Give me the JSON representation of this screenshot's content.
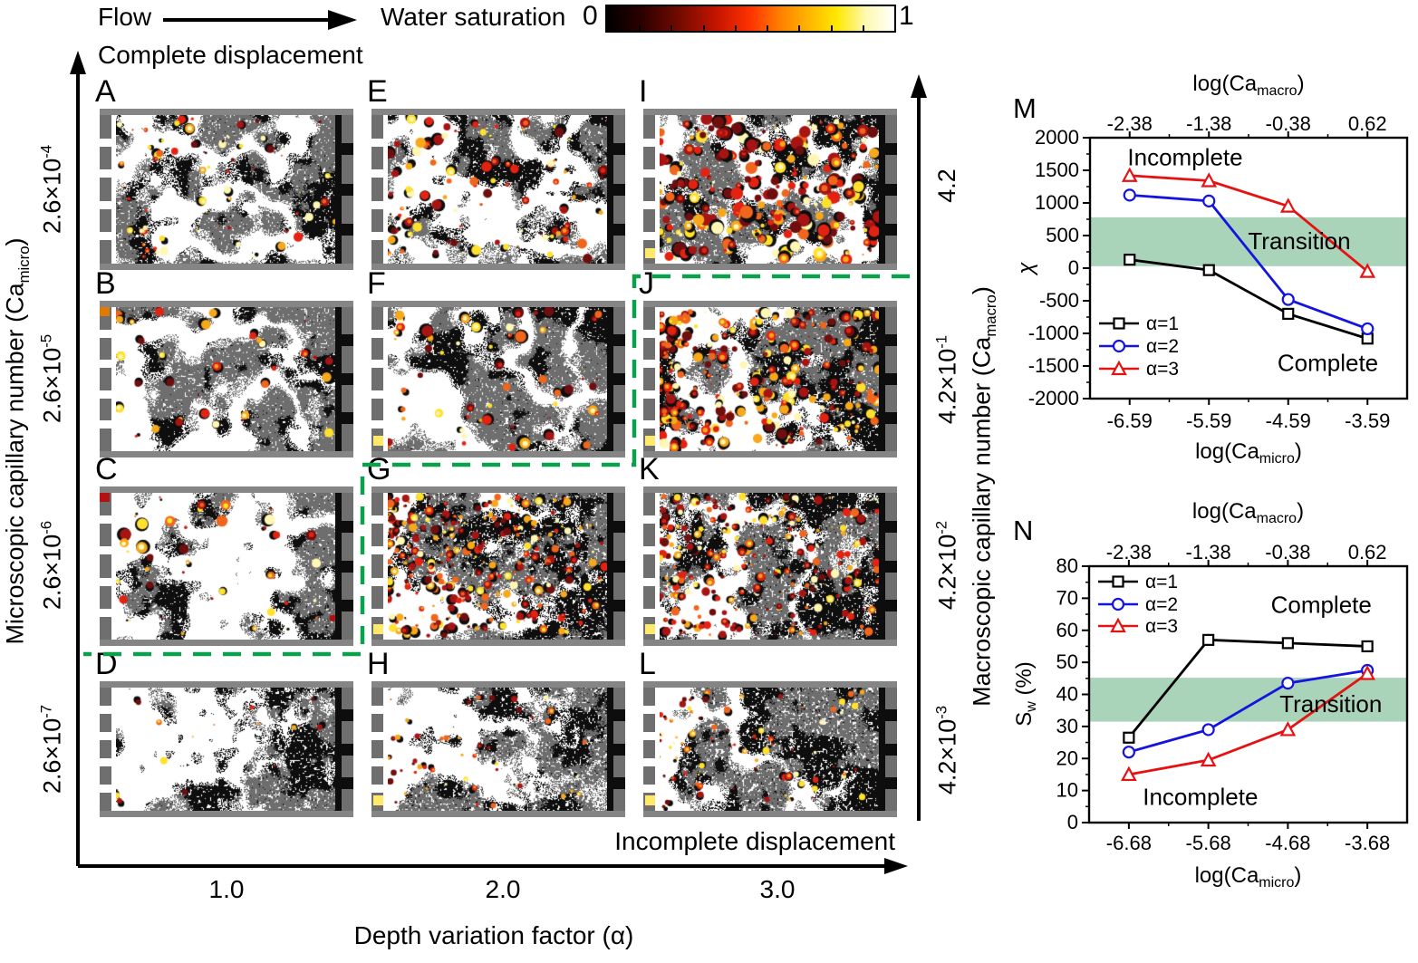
{
  "figure": {
    "flow_label": "Flow",
    "colorbar": {
      "label": "Water saturation",
      "min": "0",
      "max": "1"
    },
    "complete_label": "Complete displacement",
    "incomplete_label": "Incomplete displacement",
    "colors": {
      "dash_green": "#0aa14d",
      "band_green": "#a9d4ba",
      "matrix_gray": "#6e6e6e",
      "pore_black": "#0d0d0d",
      "water_white": "#ffffff"
    },
    "axes": {
      "left": {
        "title_pre": "Microscopic capillary number (Ca",
        "title_sub": "micro",
        "title_post": ")",
        "ticks": [
          {
            "base": "2.6×10",
            "exp": "-4"
          },
          {
            "base": "2.6×10",
            "exp": "-5"
          },
          {
            "base": "2.6×10",
            "exp": "-6"
          },
          {
            "base": "2.6×10",
            "exp": "-7"
          }
        ]
      },
      "right": {
        "title_pre": "Macroscopic capillary number (Ca",
        "title_sub": "macro",
        "title_post": ")",
        "ticks": [
          {
            "base": "4.2",
            "exp": ""
          },
          {
            "base": "4.2×10",
            "exp": "-1"
          },
          {
            "base": "4.2×10",
            "exp": "-2"
          },
          {
            "base": "4.2×10",
            "exp": "-3"
          }
        ]
      },
      "bottom": {
        "title": "Depth variation factor (α)",
        "ticks": [
          "1.0",
          "2.0",
          "3.0"
        ]
      }
    },
    "panels": [
      {
        "letter": "A",
        "col": 0,
        "row": 0,
        "tex": {
          "cw": 0.16,
          "tb": 0.565,
          "bias": 0.15,
          "sp": 0.22,
          "cc": 70,
          "blob": 4.5,
          "red": 0.35,
          "seed": 11,
          "inletYellow": false,
          "corner": ""
        }
      },
      {
        "letter": "B",
        "col": 0,
        "row": 1,
        "tex": {
          "cw": 0.15,
          "tb": 0.55,
          "bias": 0.45,
          "sp": 0.2,
          "cc": 34,
          "blob": 4.5,
          "red": 0.5,
          "seed": 44,
          "inletYellow": false,
          "corner": "#e07a00"
        }
      },
      {
        "letter": "C",
        "col": 0,
        "row": 2,
        "tex": {
          "cw": 0.185,
          "tb": 0.575,
          "bias": 0.3,
          "sp": 0.28,
          "cc": 40,
          "blob": 5.5,
          "red": 0.5,
          "seed": 77,
          "inletYellow": false,
          "corner": "#b31212"
        }
      },
      {
        "letter": "D",
        "col": 0,
        "row": 3,
        "tex": {
          "cw": 0.06,
          "tb": 0.545,
          "bias": 0.55,
          "sp": 0.42,
          "cc": 14,
          "blob": 3.5,
          "red": 0.6,
          "seed": 111,
          "inletYellow": false,
          "corner": ""
        }
      },
      {
        "letter": "E",
        "col": 1,
        "row": 0,
        "tex": {
          "cw": 0.15,
          "tb": 0.56,
          "bias": 0.18,
          "sp": 0.22,
          "cc": 100,
          "blob": 5.0,
          "red": 0.5,
          "seed": 22,
          "inletYellow": false,
          "corner": ""
        }
      },
      {
        "letter": "F",
        "col": 1,
        "row": 1,
        "tex": {
          "cw": 0.14,
          "tb": 0.55,
          "bias": 0.5,
          "sp": 0.2,
          "cc": 60,
          "blob": 5.5,
          "red": 0.55,
          "seed": 55,
          "inletYellow": true,
          "corner": ""
        }
      },
      {
        "letter": "G",
        "col": 1,
        "row": 2,
        "tex": {
          "cw": 0.06,
          "tb": 0.54,
          "bias": 0.75,
          "sp": 0.45,
          "cc": 300,
          "blob": 4.0,
          "red": 0.6,
          "seed": 88,
          "inletYellow": true,
          "corner": ""
        }
      },
      {
        "letter": "H",
        "col": 1,
        "row": 3,
        "tex": {
          "cw": 0.05,
          "tb": 0.55,
          "bias": 0.65,
          "sp": 0.5,
          "cc": 50,
          "blob": 2.8,
          "red": 0.55,
          "seed": 122,
          "inletYellow": true,
          "corner": ""
        }
      },
      {
        "letter": "I",
        "col": 2,
        "row": 0,
        "tex": {
          "cw": 0.14,
          "tb": 0.56,
          "bias": 0.15,
          "sp": 0.22,
          "cc": 240,
          "blob": 6.5,
          "red": 0.62,
          "seed": 33,
          "inletYellow": true,
          "corner": ""
        }
      },
      {
        "letter": "J",
        "col": 2,
        "row": 1,
        "tex": {
          "cw": 0.085,
          "tb": 0.545,
          "bias": 0.6,
          "sp": 0.3,
          "cc": 280,
          "blob": 5.0,
          "red": 0.66,
          "seed": 66,
          "inletYellow": true,
          "corner": ""
        }
      },
      {
        "letter": "K",
        "col": 2,
        "row": 2,
        "tex": {
          "cw": 0.06,
          "tb": 0.54,
          "bias": 0.75,
          "sp": 0.42,
          "cc": 240,
          "blob": 4.0,
          "red": 0.6,
          "seed": 99,
          "inletYellow": true,
          "corner": ""
        }
      },
      {
        "letter": "L",
        "col": 2,
        "row": 3,
        "tex": {
          "cw": 0.05,
          "tb": 0.55,
          "bias": 0.65,
          "sp": 0.5,
          "cc": 80,
          "blob": 3.2,
          "red": 0.6,
          "seed": 133,
          "inletYellow": true,
          "corner": ""
        }
      }
    ]
  },
  "chart_data": [
    {
      "type": "line",
      "panel_label": "M",
      "title": "",
      "top_xlabel": {
        "pre": "log(Ca",
        "sub": "macro",
        "post": ")"
      },
      "xlabel": {
        "pre": "log(Ca",
        "sub": "micro",
        "post": ")"
      },
      "ylabel": {
        "pre": "χ",
        "sub": "",
        "post": "",
        "italic": true
      },
      "top_xticks": [
        "-2.38",
        "-1.38",
        "-0.38",
        "0.62"
      ],
      "xticks": [
        "-6.59",
        "-5.59",
        "-4.59",
        "-3.59"
      ],
      "x": [
        -6.59,
        -5.59,
        -4.59,
        -3.59
      ],
      "ylim": [
        -2000,
        2000
      ],
      "ytick_step": 500,
      "grid": false,
      "legend_position": "lower-left",
      "band": {
        "from": 30,
        "to": 780,
        "color": "#a9d4ba"
      },
      "series": [
        {
          "name": "α=1",
          "marker": "square",
          "color": "#000000",
          "values": [
            130,
            -30,
            -700,
            -1080
          ]
        },
        {
          "name": "α=2",
          "marker": "circle",
          "color": "#1414dd",
          "values": [
            1120,
            1030,
            -480,
            -930
          ]
        },
        {
          "name": "α=3",
          "marker": "triangle",
          "color": "#e51212",
          "values": [
            1420,
            1340,
            950,
            -50
          ]
        }
      ],
      "annotations": [
        {
          "text": "Incomplete",
          "xf": 0.3,
          "y": 1700
        },
        {
          "text": "Transition",
          "xf": 0.66,
          "y": 420
        },
        {
          "text": "Complete",
          "xf": 0.75,
          "y": -1450
        }
      ]
    },
    {
      "type": "line",
      "panel_label": "N",
      "title": "",
      "top_xlabel": {
        "pre": "log(Ca",
        "sub": "macro",
        "post": ")"
      },
      "xlabel": {
        "pre": "log(Ca",
        "sub": "micro",
        "post": ")"
      },
      "ylabel": {
        "pre": "S",
        "sub": "w",
        "post": " (%)",
        "italic": false
      },
      "top_xticks": [
        "-2.38",
        "-1.38",
        "-0.38",
        "0.62"
      ],
      "xticks": [
        "-6.68",
        "-5.68",
        "-4.68",
        "-3.68"
      ],
      "x": [
        -6.68,
        -5.68,
        -4.68,
        -3.68
      ],
      "ylim": [
        0,
        80
      ],
      "ytick_step": 10,
      "grid": false,
      "legend_position": "upper-left",
      "band": {
        "from": 31.5,
        "to": 45.2,
        "color": "#a9d4ba"
      },
      "series": [
        {
          "name": "α=1",
          "marker": "square",
          "color": "#000000",
          "values": [
            26.5,
            57,
            56,
            55
          ]
        },
        {
          "name": "α=2",
          "marker": "circle",
          "color": "#1414dd",
          "values": [
            22,
            29,
            43.5,
            47.5
          ]
        },
        {
          "name": "α=3",
          "marker": "triangle",
          "color": "#e51212",
          "values": [
            15,
            19.5,
            29,
            46.5
          ]
        }
      ],
      "annotations": [
        {
          "text": "Complete",
          "xf": 0.73,
          "y": 68
        },
        {
          "text": "Transition",
          "xf": 0.76,
          "y": 37
        },
        {
          "text": "Incomplete",
          "xf": 0.35,
          "y": 8
        }
      ]
    }
  ]
}
